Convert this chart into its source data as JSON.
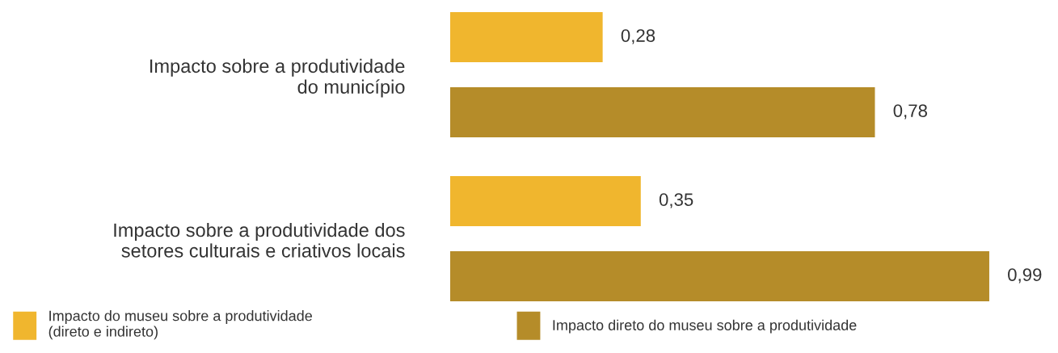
{
  "chart_data": {
    "type": "bar",
    "orientation": "horizontal",
    "categories": [
      "Impacto sobre a produtividade\ndo município",
      "Impacto sobre a produtividade dos\nsetores culturais e criativos locais"
    ],
    "series": [
      {
        "name": "Impacto do museu sobre a produtividade\n(direto e indireto)",
        "color": "#f0b62e",
        "values": [
          0.28,
          0.35
        ],
        "value_labels": [
          "0,28",
          "0,35"
        ]
      },
      {
        "name": "Impacto direto do museu sobre a produtividade",
        "color": "#b58c29",
        "values": [
          0.78,
          0.99
        ],
        "value_labels": [
          "0,78",
          "0,99"
        ]
      }
    ],
    "legend": "bottom"
  }
}
